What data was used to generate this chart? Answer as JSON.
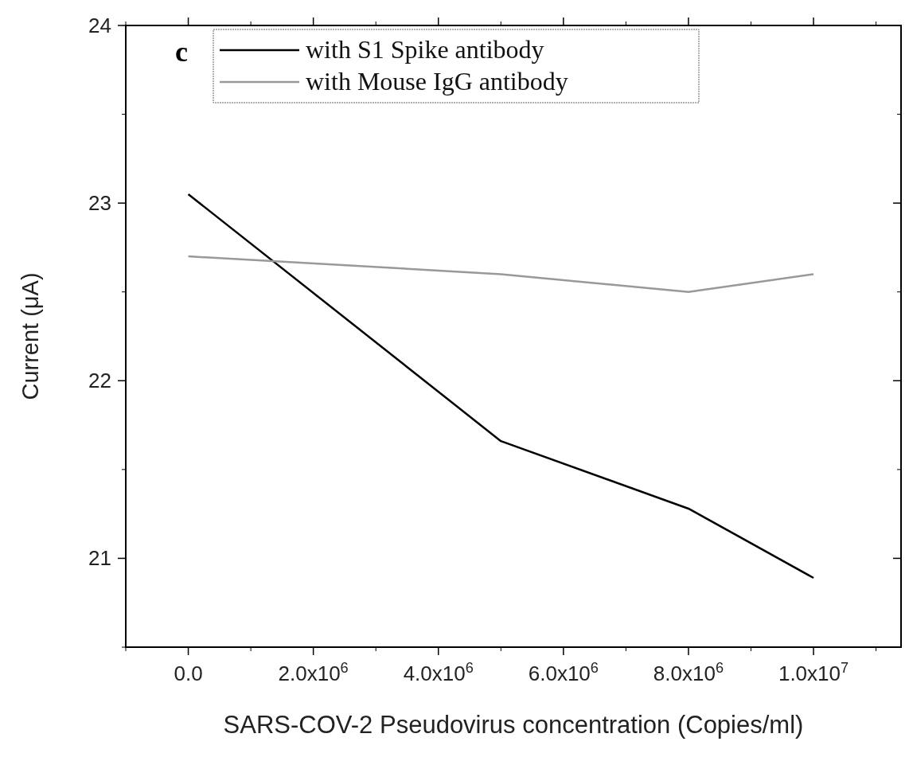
{
  "chart_data": {
    "type": "line",
    "xlabel": "SARS-COV-2 Pseudovirus concentration (Copies/ml)",
    "ylabel": "Current (μA)",
    "annotations": [
      "c"
    ],
    "x": [
      0,
      5000000,
      8000000,
      10000000
    ],
    "series": [
      {
        "name": "with S1 Spike antibody",
        "color": "#000000",
        "values": [
          23.05,
          21.66,
          21.28,
          20.89
        ]
      },
      {
        "name": "with Mouse IgG antibody",
        "color": "#999999",
        "values": [
          22.7,
          22.6,
          22.5,
          22.6
        ]
      }
    ],
    "xlim": [
      -1000000,
      11400000
    ],
    "ylim": [
      20.5,
      24
    ],
    "xticks": [
      {
        "value": 0,
        "label": "0.0"
      },
      {
        "value": 2000000,
        "label": "2.0x10$^{6}$"
      },
      {
        "value": 4000000,
        "label": "4.0x10$^{6}$"
      },
      {
        "value": 6000000,
        "label": "6.0x10$^{6}$"
      },
      {
        "value": 8000000,
        "label": "8.0x10$^{6}$"
      },
      {
        "value": 10000000,
        "label": "1.0x10$^{7}$"
      }
    ],
    "yticks": [
      21,
      22,
      23,
      24
    ],
    "legend": "top left",
    "marker": "none",
    "line_style": "solid",
    "grid": false
  }
}
